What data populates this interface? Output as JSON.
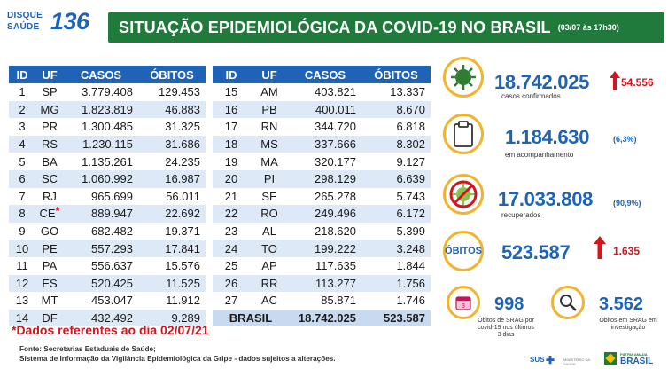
{
  "header": {
    "logo_line1": "DISQUE",
    "logo_line2": "SAÚDE",
    "logo_number": "136",
    "title": "SITUAÇÃO EPIDEMIOLÓGICA DA COVID-19 NO BRASIL",
    "timestamp": "(03/07 às 17h30)"
  },
  "table_headers": {
    "id": "ID",
    "uf": "UF",
    "casos": "CASOS",
    "obitos": "ÓBITOS"
  },
  "table_left": [
    {
      "id": "1",
      "uf": "SP",
      "casos": "3.779.408",
      "obitos": "129.453"
    },
    {
      "id": "2",
      "uf": "MG",
      "casos": "1.823.819",
      "obitos": "46.883"
    },
    {
      "id": "3",
      "uf": "PR",
      "casos": "1.300.485",
      "obitos": "31.325"
    },
    {
      "id": "4",
      "uf": "RS",
      "casos": "1.230.115",
      "obitos": "31.686"
    },
    {
      "id": "5",
      "uf": "BA",
      "casos": "1.135.261",
      "obitos": "24.235"
    },
    {
      "id": "6",
      "uf": "SC",
      "casos": "1.060.992",
      "obitos": "16.987"
    },
    {
      "id": "7",
      "uf": "RJ",
      "casos": "965.699",
      "obitos": "56.011"
    },
    {
      "id": "8",
      "uf": "CE",
      "casos": "889.947",
      "obitos": "22.692"
    },
    {
      "id": "9",
      "uf": "GO",
      "casos": "682.482",
      "obitos": "19.371"
    },
    {
      "id": "10",
      "uf": "PE",
      "casos": "557.293",
      "obitos": "17.841"
    },
    {
      "id": "11",
      "uf": "PA",
      "casos": "556.637",
      "obitos": "15.576"
    },
    {
      "id": "12",
      "uf": "ES",
      "casos": "520.425",
      "obitos": "11.525"
    },
    {
      "id": "13",
      "uf": "MT",
      "casos": "453.047",
      "obitos": "11.912"
    },
    {
      "id": "14",
      "uf": "DF",
      "casos": "432.492",
      "obitos": "9.289"
    }
  ],
  "table_right": [
    {
      "id": "15",
      "uf": "AM",
      "casos": "403.821",
      "obitos": "13.337"
    },
    {
      "id": "16",
      "uf": "PB",
      "casos": "400.011",
      "obitos": "8.670"
    },
    {
      "id": "17",
      "uf": "RN",
      "casos": "344.720",
      "obitos": "6.818"
    },
    {
      "id": "18",
      "uf": "MS",
      "casos": "337.666",
      "obitos": "8.302"
    },
    {
      "id": "19",
      "uf": "MA",
      "casos": "320.177",
      "obitos": "9.127"
    },
    {
      "id": "20",
      "uf": "PI",
      "casos": "298.129",
      "obitos": "6.639"
    },
    {
      "id": "21",
      "uf": "SE",
      "casos": "265.278",
      "obitos": "5.743"
    },
    {
      "id": "22",
      "uf": "RO",
      "casos": "249.496",
      "obitos": "6.172"
    },
    {
      "id": "23",
      "uf": "AL",
      "casos": "218.620",
      "obitos": "5.399"
    },
    {
      "id": "24",
      "uf": "TO",
      "casos": "199.222",
      "obitos": "3.248"
    },
    {
      "id": "25",
      "uf": "AP",
      "casos": "117.635",
      "obitos": "1.844"
    },
    {
      "id": "26",
      "uf": "RR",
      "casos": "113.277",
      "obitos": "1.756"
    },
    {
      "id": "27",
      "uf": "AC",
      "casos": "85.871",
      "obitos": "1.746"
    }
  ],
  "brasil_total": {
    "label": "BRASIL",
    "casos": "18.742.025",
    "obitos": "523.587"
  },
  "ce_marker": "*",
  "note": "*Dados referentes ao dia 02/07/21",
  "source_line1": "Fonte: Secretarias Estaduais de Saúde;",
  "source_line2": "Sistema de Informação da Vigilância Epidemiológica da Gripe - dados sujeitos a alterações.",
  "stats": {
    "confirmed": {
      "value": "18.742.025",
      "increase": "54.556",
      "label": "casos confirmados"
    },
    "monitoring": {
      "value": "1.184.630",
      "pct": "(6,3%)",
      "label": "em acompanhamento"
    },
    "recovered": {
      "value": "17.033.808",
      "pct": "(90,9%)",
      "label": "recuperados"
    },
    "deaths": {
      "label": "ÓBITOS",
      "value": "523.587",
      "increase": "1.635"
    },
    "srag": {
      "value": "998",
      "label_line1": "Óbitos de SRAG por",
      "label_line2": "covid-19 nos últimos",
      "label_line3": "3 dias"
    },
    "investigation": {
      "value": "3.562",
      "label_line1": "Óbitos em SRAG em",
      "label_line2": "investigação"
    }
  },
  "footer": {
    "sus": "SUS",
    "brasil": "BRASIL",
    "gov_line": "PÁTRIA AMADA",
    "ministry": "MINISTÉRIO DA SAÚDE"
  },
  "colors": {
    "title_green": "#1f7a3c",
    "header_blue": "#1e63b5",
    "alert_red": "#d2161e",
    "ring_yellow": "#f2b32e",
    "stripe": "#dde9f6"
  }
}
